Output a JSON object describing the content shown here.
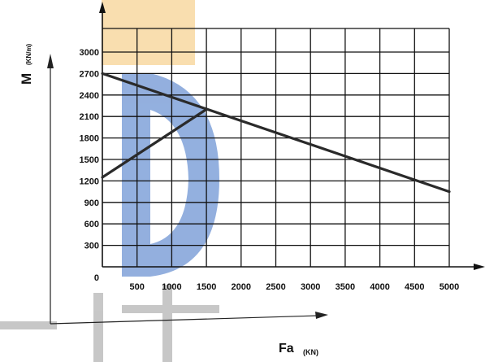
{
  "chart_data": {
    "type": "line",
    "xlabel": "Fa",
    "xunit": "(KN)",
    "ylabel": "M",
    "yunit": "(KN/m)",
    "xlim": [
      0,
      5000
    ],
    "ylim": [
      0,
      3300
    ],
    "x_ticks": [
      "500",
      "1000",
      "1500",
      "2000",
      "2500",
      "3000",
      "3500",
      "4000",
      "4500",
      "5000"
    ],
    "y_ticks": [
      "300",
      "600",
      "900",
      "1200",
      "1500",
      "1800",
      "2100",
      "2400",
      "2700",
      "3000"
    ],
    "origin_label": "0",
    "grid": true,
    "series": [
      {
        "points": [
          [
            0,
            2700
          ],
          [
            5000,
            1050
          ]
        ]
      },
      {
        "points": [
          [
            0,
            1250
          ],
          [
            1500,
            2200
          ]
        ]
      }
    ]
  },
  "watermark": {
    "colors": [
      "#f5c46f",
      "#3b6fc4",
      "#888888"
    ]
  }
}
